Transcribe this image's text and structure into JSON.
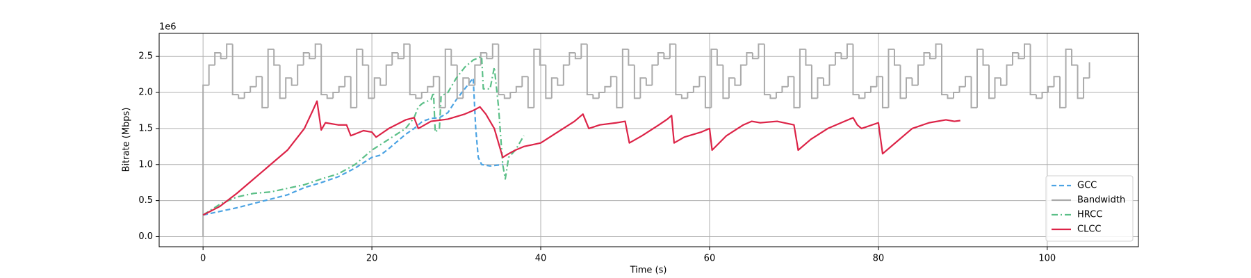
{
  "chart_data": {
    "type": "line",
    "xlabel": "Time (s)",
    "ylabel": "Bitrate (Mbps)",
    "y_offset_label": "1e6",
    "xlim": [
      -5.2,
      110.8
    ],
    "ylim": [
      -0.14,
      2.82
    ],
    "xticks": [
      0,
      20,
      40,
      60,
      80,
      100
    ],
    "yticks": [
      {
        "value": 0,
        "label": "0.0"
      },
      0.5,
      {
        "value": 1,
        "label": "1.0"
      },
      1.5,
      {
        "value": 2,
        "label": "2.0"
      },
      2.5
    ],
    "grid": true,
    "legend": "lower right",
    "series": [
      {
        "name": "GCC",
        "color": "#4ba3e3",
        "linestyle": "dashed",
        "x": [
          0,
          2,
          4,
          6,
          8,
          10,
          11,
          12,
          14,
          16,
          18,
          20,
          21,
          22,
          23,
          24,
          25,
          26,
          27,
          28,
          29,
          30,
          31,
          32,
          32.3,
          32.6,
          33,
          34,
          35.5
        ],
        "values": [
          0.3,
          0.35,
          0.4,
          0.46,
          0.52,
          0.58,
          0.63,
          0.68,
          0.75,
          0.83,
          0.95,
          1.1,
          1.13,
          1.22,
          1.32,
          1.42,
          1.5,
          1.6,
          1.64,
          1.65,
          1.72,
          1.9,
          2.05,
          2.2,
          1.5,
          1.1,
          1.0,
          0.98,
          1.0
        ]
      },
      {
        "name": "Bandwidth",
        "color": "#aaaaaa",
        "linestyle": "solid",
        "drawstyle": "steps-post",
        "x": [
          0,
          0,
          0.7,
          1.4,
          2.1,
          2.8,
          3.5,
          4.2,
          4.9,
          5.6,
          6.3,
          7,
          7.7,
          8.4,
          9.1,
          9.8,
          10.5,
          11.2,
          11.9,
          12.6,
          13.3,
          14,
          14.7,
          15.4,
          16.1,
          16.8,
          17.5,
          18.2,
          18.9,
          19.6,
          20.3,
          21,
          21.7,
          22.4,
          23.1,
          23.8,
          24.5,
          25.2,
          25.9,
          26.6,
          27.3,
          28,
          28.7,
          29.4,
          30.1,
          30.8,
          31.5,
          32.2,
          32.9,
          33.6,
          34.3,
          35,
          35.7,
          36.4,
          37.1,
          37.8,
          38.5,
          39.2,
          39.9,
          40.6,
          41.3,
          42,
          42.7,
          43.4,
          44.1,
          44.8,
          45.5,
          46.2,
          46.9,
          47.6,
          48.3,
          49,
          49.7,
          50.4,
          51.1,
          51.8,
          52.5,
          53.2,
          53.9,
          54.6,
          55.3,
          56,
          56.7,
          57.4,
          58.1,
          58.8,
          59.5,
          60.2,
          60.9,
          61.6,
          62.3,
          63,
          63.7,
          64.4,
          65.1,
          65.8,
          66.5,
          67.2,
          67.9,
          68.6,
          69.3,
          70,
          70.7,
          71.4,
          72.1,
          72.8,
          73.5,
          74.2,
          74.9,
          75.6,
          76.3,
          77,
          77.7,
          78.4,
          79.1,
          79.8,
          80.5,
          81.2,
          81.9,
          82.6,
          83.3,
          84,
          84.7,
          85.4,
          86.1,
          86.8,
          87.5,
          88.2,
          88.9,
          89.6,
          90.3,
          91,
          91.7,
          92.4,
          93.1,
          93.8,
          94.5,
          95.2,
          95.9,
          96.6,
          97.3,
          98,
          98.7,
          99.4,
          100.1,
          100.8,
          101.5,
          102.2,
          102.9,
          103.6,
          104.3,
          105
        ],
        "values": [
          0,
          2.1,
          2.38,
          2.55,
          2.47,
          2.67,
          1.97,
          1.92,
          2.0,
          2.08,
          2.22,
          1.79,
          2.6,
          2.38,
          1.92,
          2.2,
          2.1,
          2.38,
          2.55,
          2.47,
          2.67,
          1.97,
          1.92,
          2.0,
          2.08,
          2.22,
          1.79,
          2.6,
          2.38,
          1.92,
          2.2,
          2.1,
          2.38,
          2.55,
          2.47,
          2.67,
          1.97,
          1.92,
          2.0,
          2.08,
          2.22,
          1.79,
          2.6,
          2.38,
          1.92,
          2.2,
          2.1,
          2.38,
          2.55,
          2.47,
          2.67,
          1.97,
          1.92,
          2.0,
          2.08,
          2.22,
          1.79,
          2.6,
          2.38,
          1.92,
          2.2,
          2.1,
          2.38,
          2.55,
          2.47,
          2.67,
          1.97,
          1.92,
          2.0,
          2.08,
          2.22,
          1.79,
          2.6,
          2.38,
          1.92,
          2.2,
          2.1,
          2.38,
          2.55,
          2.47,
          2.67,
          1.97,
          1.92,
          2.0,
          2.08,
          2.22,
          1.79,
          2.6,
          2.38,
          1.92,
          2.2,
          2.1,
          2.38,
          2.55,
          2.47,
          2.67,
          1.97,
          1.92,
          2.0,
          2.08,
          2.22,
          1.79,
          2.6,
          2.38,
          1.92,
          2.2,
          2.1,
          2.38,
          2.55,
          2.47,
          2.67,
          1.97,
          1.92,
          2.0,
          2.08,
          2.22,
          1.79,
          2.6,
          2.38,
          1.92,
          2.2,
          2.1,
          2.38,
          2.55,
          2.47,
          2.67,
          1.97,
          1.92,
          2.0,
          2.08,
          2.22,
          1.79,
          2.6,
          2.38,
          1.92,
          2.2,
          2.1,
          2.38,
          2.55,
          2.47,
          2.67,
          1.97,
          1.92,
          2.0,
          2.08,
          2.22,
          1.79,
          2.6,
          2.38,
          1.92,
          2.2,
          2.42
        ]
      },
      {
        "name": "HRCC",
        "color": "#5bbf87",
        "linestyle": "dashdot",
        "x": [
          0,
          2,
          4,
          6,
          8,
          10,
          12,
          14,
          16,
          18,
          20,
          22,
          24,
          25,
          25.5,
          26,
          27,
          27.3,
          27.5,
          28,
          28.2,
          29,
          30,
          31,
          32,
          33,
          33.2,
          34,
          34.5,
          35,
          35.5,
          35.8,
          36.2,
          37,
          37.5,
          38
        ],
        "values": [
          0.3,
          0.45,
          0.55,
          0.6,
          0.62,
          0.67,
          0.72,
          0.8,
          0.87,
          1.0,
          1.2,
          1.35,
          1.5,
          1.65,
          1.8,
          1.85,
          1.9,
          2.0,
          1.45,
          1.5,
          1.95,
          2.0,
          2.2,
          2.35,
          2.45,
          2.5,
          2.05,
          2.05,
          2.35,
          1.8,
          1.0,
          0.8,
          1.1,
          1.2,
          1.3,
          1.4
        ]
      },
      {
        "name": "CLCC",
        "color": "#dc2347",
        "linestyle": "solid",
        "x": [
          0,
          2,
          4,
          6,
          8,
          10,
          12,
          13,
          13.5,
          14,
          14.5,
          16,
          17,
          17.5,
          19,
          20,
          20.5,
          22,
          24,
          25,
          25.5,
          27,
          29,
          31,
          32,
          32.8,
          33.5,
          34.5,
          35.5,
          36.2,
          37,
          38,
          40,
          42,
          44,
          45,
          45.7,
          47,
          49,
          50,
          50.5,
          52,
          54,
          55,
          55.5,
          55.8,
          57,
          59,
          60,
          60.3,
          62,
          64,
          65,
          66,
          68,
          70,
          70.5,
          72,
          74,
          76,
          77,
          77.5,
          78,
          80,
          80.5,
          82,
          84,
          86,
          88,
          89,
          89.7
        ],
        "values": [
          0.3,
          0.42,
          0.6,
          0.8,
          1.0,
          1.2,
          1.5,
          1.75,
          1.88,
          1.48,
          1.58,
          1.55,
          1.55,
          1.4,
          1.47,
          1.45,
          1.38,
          1.5,
          1.62,
          1.65,
          1.5,
          1.6,
          1.63,
          1.7,
          1.75,
          1.8,
          1.7,
          1.5,
          1.1,
          1.15,
          1.2,
          1.25,
          1.3,
          1.45,
          1.6,
          1.7,
          1.5,
          1.55,
          1.58,
          1.6,
          1.3,
          1.4,
          1.55,
          1.63,
          1.68,
          1.3,
          1.38,
          1.45,
          1.5,
          1.2,
          1.4,
          1.55,
          1.6,
          1.58,
          1.6,
          1.55,
          1.2,
          1.35,
          1.5,
          1.6,
          1.65,
          1.55,
          1.5,
          1.58,
          1.15,
          1.3,
          1.5,
          1.58,
          1.62,
          1.6,
          1.61
        ]
      }
    ]
  }
}
